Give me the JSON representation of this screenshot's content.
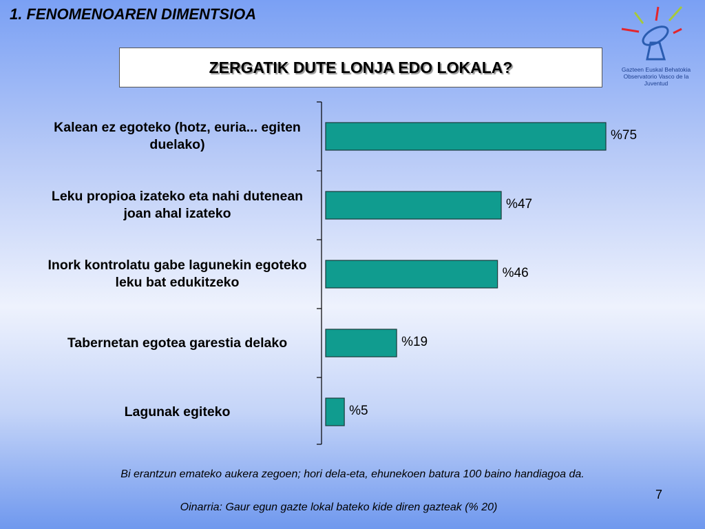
{
  "header": "1. FENOMENOAREN DIMENTSIOA",
  "logo": {
    "line1": "Gazteen Euskal Behatokia",
    "line2": "Observatorio Vasco de la Juventud"
  },
  "chart_data": {
    "type": "bar",
    "orientation": "horizontal",
    "title": "ZERGATIK DUTE LONJA EDO LOKALA?",
    "categories": [
      "Kalean ez egoteko (hotz, euria... egiten duelako)",
      "Leku propioa izateko eta nahi dutenean joan ahal izateko",
      "Inork kontrolatu gabe lagunekin egoteko leku bat edukitzeko",
      "Tabernetan egotea garestia delako",
      "Lagunak egiteko"
    ],
    "values": [
      75,
      47,
      46,
      19,
      5
    ],
    "value_labels": [
      "%75",
      "%47",
      "%46",
      "%19",
      "%5"
    ],
    "color": "#109c8f"
  },
  "footnote": "Bi erantzun emateko aukera zegoen; hori dela-eta, ehunekoen batura 100 baino handiagoa da.",
  "page_number": "7",
  "source": "Oinarria: Gaur egun gazte lokal bateko kide diren gazteak (% 20)"
}
